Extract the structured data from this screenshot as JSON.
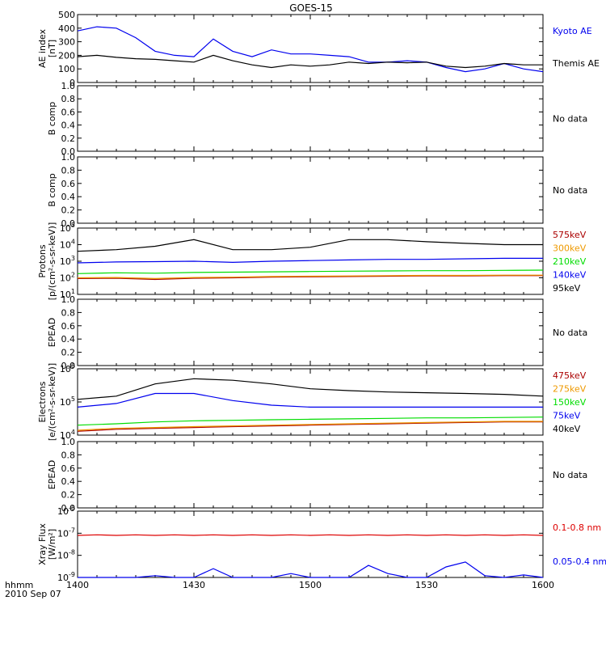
{
  "title": "GOES-15",
  "time_axis": {
    "ticks": [
      "1400",
      "1430",
      "1500",
      "1530",
      "1600"
    ],
    "label": "hhmm",
    "date": "2010 Sep 07"
  },
  "no_data_text": "No data",
  "colors": {
    "black": "#000000",
    "blue": "#0000ee",
    "green": "#00dd00",
    "orange": "#ee9900",
    "red": "#dd0000",
    "darkred": "#aa0000"
  },
  "chart_data": [
    {
      "id": "ae",
      "type": "line",
      "ylabel": [
        "AE index",
        "[nT]"
      ],
      "ylim": [
        0,
        500
      ],
      "yticks": [
        "0",
        "100",
        "200",
        "300",
        "400",
        "500"
      ],
      "x": [
        0,
        5,
        10,
        15,
        20,
        25,
        30,
        35,
        40,
        45,
        50,
        55,
        60,
        65,
        70,
        75,
        80,
        85,
        90,
        95,
        100,
        105,
        110,
        115,
        120
      ],
      "series": [
        {
          "name": "Kyoto AE",
          "color": "#0000ee",
          "values": [
            380,
            410,
            400,
            330,
            230,
            200,
            190,
            320,
            230,
            190,
            240,
            210,
            210,
            200,
            190,
            150,
            150,
            160,
            150,
            110,
            80,
            100,
            140,
            100,
            80
          ]
        },
        {
          "name": "Themis AE",
          "color": "#000000",
          "values": [
            190,
            200,
            185,
            175,
            170,
            160,
            150,
            200,
            160,
            130,
            110,
            130,
            120,
            130,
            150,
            140,
            150,
            145,
            150,
            120,
            110,
            120,
            140,
            130,
            130
          ]
        }
      ]
    },
    {
      "id": "b1",
      "type": "line",
      "ylabel": [
        "B comp"
      ],
      "ylim": [
        0,
        1
      ],
      "yticks": [
        "0.0",
        "0.2",
        "0.4",
        "0.6",
        "0.8",
        "1.0"
      ],
      "nodata": true
    },
    {
      "id": "b2",
      "type": "line",
      "ylabel": [
        "B comp"
      ],
      "ylim": [
        0,
        1
      ],
      "yticks": [
        "0.0",
        "0.2",
        "0.4",
        "0.6",
        "0.8",
        "1.0"
      ],
      "nodata": true
    },
    {
      "id": "protons",
      "type": "line",
      "log": true,
      "ylabel": [
        "Protons",
        "[p/(cm²-s-sr-keV)]"
      ],
      "ylim_exp": [
        1,
        5
      ],
      "ytick_exps": [
        1,
        2,
        3,
        4,
        5
      ],
      "x": [
        0,
        10,
        20,
        30,
        40,
        50,
        60,
        70,
        80,
        90,
        100,
        110,
        120
      ],
      "series": [
        {
          "name": "575keV",
          "color": "#aa0000",
          "values": [
            90,
            95,
            80,
            95,
            100,
            110,
            115,
            120,
            125,
            130,
            130,
            135,
            135
          ]
        },
        {
          "name": "300keV",
          "color": "#ee9900",
          "values": [
            100,
            105,
            90,
            105,
            110,
            120,
            125,
            130,
            135,
            140,
            140,
            145,
            145
          ]
        },
        {
          "name": "210keV",
          "color": "#00dd00",
          "values": [
            180,
            200,
            190,
            210,
            220,
            230,
            240,
            250,
            260,
            270,
            270,
            280,
            290
          ]
        },
        {
          "name": "140keV",
          "color": "#0000ee",
          "values": [
            800,
            900,
            950,
            1000,
            850,
            1000,
            1100,
            1200,
            1300,
            1300,
            1400,
            1500,
            1500
          ]
        },
        {
          "name": "95keV",
          "color": "#000000",
          "values": [
            4000,
            5000,
            8000,
            20000,
            5000,
            5000,
            7000,
            20000,
            20000,
            15000,
            12000,
            10000,
            10000
          ]
        }
      ]
    },
    {
      "id": "epead1",
      "type": "line",
      "ylabel": [
        "EPEAD"
      ],
      "ylim": [
        0,
        1
      ],
      "yticks": [
        "0.0",
        "0.2",
        "0.4",
        "0.6",
        "0.8",
        "1.0"
      ],
      "nodata": true
    },
    {
      "id": "electrons",
      "type": "line",
      "log": true,
      "ylabel": [
        "Electrons",
        "[e/(cm²-s-sr-keV)]"
      ],
      "ylim_exp": [
        4,
        6
      ],
      "ytick_exps": [
        4,
        5,
        6
      ],
      "x": [
        0,
        10,
        20,
        30,
        40,
        50,
        60,
        70,
        80,
        90,
        100,
        110,
        120
      ],
      "series": [
        {
          "name": "475keV",
          "color": "#aa0000",
          "values": [
            13000,
            15000,
            16000,
            17000,
            18000,
            19000,
            20000,
            21000,
            22000,
            23000,
            24000,
            25000,
            25000
          ]
        },
        {
          "name": "275keV",
          "color": "#ee9900",
          "values": [
            14000,
            16000,
            17000,
            18000,
            19000,
            20000,
            21000,
            22000,
            23000,
            24000,
            25000,
            26000,
            26000
          ]
        },
        {
          "name": "150keV",
          "color": "#00dd00",
          "values": [
            20000,
            22000,
            25000,
            27000,
            28000,
            29000,
            30000,
            31000,
            32000,
            33000,
            33000,
            34000,
            35000
          ]
        },
        {
          "name": "75keV",
          "color": "#0000ee",
          "values": [
            70000,
            90000,
            180000,
            180000,
            110000,
            80000,
            70000,
            70000,
            70000,
            70000,
            70000,
            70000,
            70000
          ]
        },
        {
          "name": "40keV",
          "color": "#000000",
          "values": [
            120000,
            150000,
            350000,
            500000,
            450000,
            350000,
            250000,
            220000,
            200000,
            190000,
            180000,
            170000,
            150000
          ]
        }
      ]
    },
    {
      "id": "epead2",
      "type": "line",
      "ylabel": [
        "EPEAD"
      ],
      "ylim": [
        0,
        1
      ],
      "yticks": [
        "0.0",
        "0.2",
        "0.4",
        "0.6",
        "0.8",
        "1.0"
      ],
      "nodata": true
    },
    {
      "id": "xray",
      "type": "line",
      "log": true,
      "ylabel": [
        "Xray Flux",
        "[W/m²]"
      ],
      "ylim_exp": [
        -9,
        -6
      ],
      "ytick_exps": [
        -9,
        -8,
        -7,
        -6
      ],
      "x": [
        0,
        5,
        10,
        15,
        20,
        25,
        30,
        35,
        40,
        45,
        50,
        55,
        60,
        65,
        70,
        75,
        80,
        85,
        90,
        95,
        100,
        105,
        110,
        115,
        120
      ],
      "series": [
        {
          "name": "0.1-0.8 nm",
          "color": "#dd0000",
          "values": [
            8e-08,
            8.5e-08,
            8e-08,
            8.5e-08,
            8e-08,
            8.5e-08,
            8e-08,
            8.5e-08,
            8e-08,
            8.5e-08,
            8e-08,
            8.5e-08,
            8e-08,
            8.5e-08,
            8e-08,
            8.5e-08,
            8e-08,
            8.5e-08,
            8e-08,
            8.5e-08,
            8e-08,
            8.5e-08,
            8e-08,
            8.5e-08,
            8e-08
          ]
        },
        {
          "name": "0.05-0.4 nm",
          "color": "#0000ee",
          "values": [
            1e-09,
            1e-09,
            1e-09,
            1e-09,
            1.2e-09,
            1e-09,
            1e-09,
            2.5e-09,
            1e-09,
            1e-09,
            1e-09,
            1.5e-09,
            1e-09,
            1e-09,
            1e-09,
            3.5e-09,
            1.5e-09,
            1e-09,
            1e-09,
            3e-09,
            5e-09,
            1.2e-09,
            1e-09,
            1.3e-09,
            1e-09
          ]
        }
      ]
    }
  ]
}
